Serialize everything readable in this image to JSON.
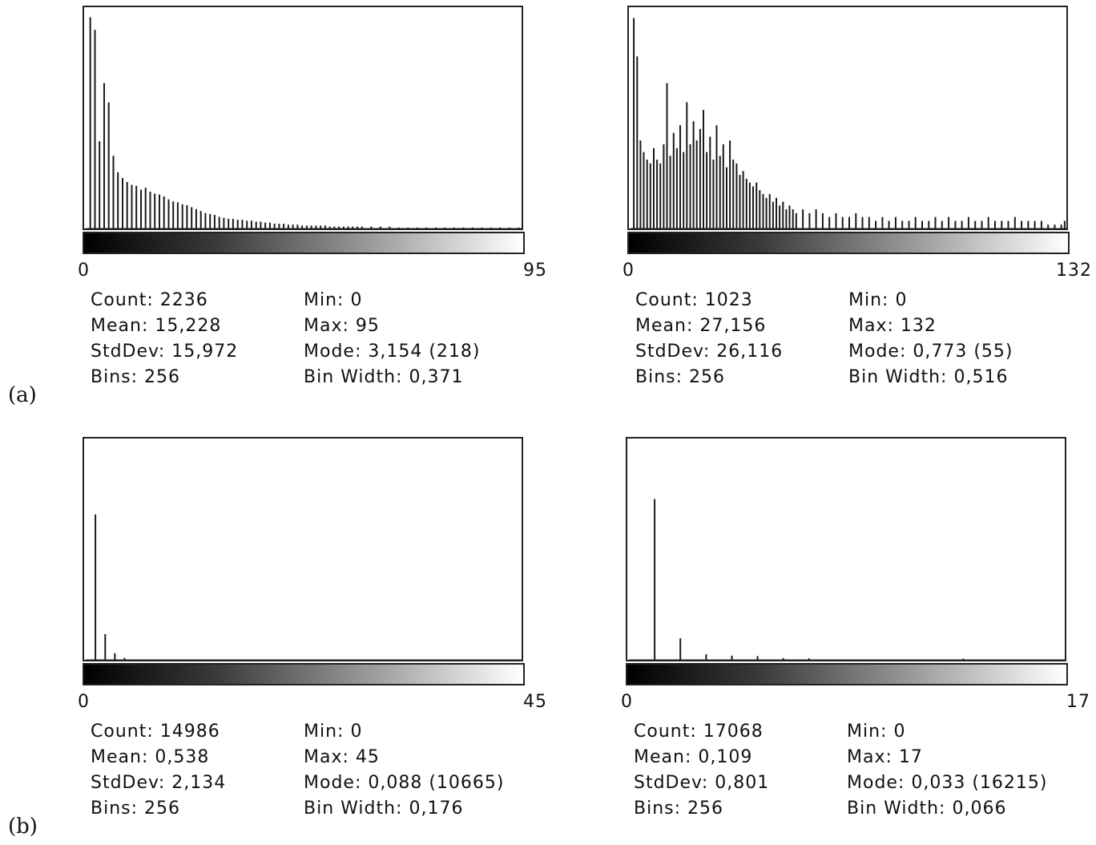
{
  "labels": {
    "a": "(a)",
    "b": "(b)"
  },
  "chart_data": [
    {
      "type": "bar",
      "xlim": [
        0,
        95
      ],
      "stats": {
        "count": "Count: 2236",
        "mean": "Mean: 15,228",
        "stddev": "StdDev: 15,972",
        "bins": "Bins: 256",
        "min": "Min: 0",
        "max": "Max: 95",
        "mode": "Mode: 3,154 (218)",
        "binwidth": "Bin Width: 0,371"
      },
      "x": [
        1,
        2,
        3,
        4,
        5,
        6,
        7,
        8,
        9,
        10,
        11,
        12,
        13,
        14,
        15,
        16,
        17,
        18,
        19,
        20,
        21,
        22,
        23,
        24,
        25,
        26,
        27,
        28,
        29,
        30,
        31,
        32,
        33,
        34,
        35,
        36,
        37,
        38,
        39,
        40,
        41,
        42,
        43,
        44,
        45,
        46,
        47,
        48,
        49,
        50,
        51,
        52,
        53,
        54,
        55,
        56,
        57,
        58,
        59,
        60,
        62,
        64,
        66,
        68,
        70,
        72,
        74,
        76,
        78,
        80,
        82,
        84,
        86,
        88,
        90,
        92,
        94
      ],
      "values": [
        218,
        205,
        90,
        150,
        130,
        75,
        58,
        52,
        48,
        45,
        44,
        40,
        42,
        38,
        36,
        35,
        33,
        30,
        28,
        27,
        25,
        24,
        22,
        20,
        18,
        16,
        15,
        14,
        12,
        11,
        10,
        10,
        9,
        9,
        8,
        8,
        7,
        7,
        6,
        6,
        5,
        5,
        5,
        4,
        4,
        4,
        3,
        3,
        3,
        3,
        3,
        3,
        2,
        2,
        2,
        2,
        2,
        2,
        2,
        2,
        2,
        2,
        2,
        1,
        1,
        1,
        1,
        1,
        1,
        1,
        1,
        1,
        1,
        1,
        1,
        1,
        1
      ],
      "ymax": 225
    },
    {
      "type": "bar",
      "xlim": [
        0,
        132
      ],
      "stats": {
        "count": "Count: 1023",
        "mean": "Mean: 27,156",
        "stddev": "StdDev: 26,116",
        "bins": "Bins: 256",
        "min": "Min: 0",
        "max": "Max: 132",
        "mode": "Mode: 0,773 (55)",
        "binwidth": "Bin Width: 0,516"
      },
      "x": [
        1,
        2,
        3,
        4,
        5,
        6,
        7,
        8,
        9,
        10,
        11,
        12,
        13,
        14,
        15,
        16,
        17,
        18,
        19,
        20,
        21,
        22,
        23,
        24,
        25,
        26,
        27,
        28,
        29,
        30,
        31,
        32,
        33,
        34,
        35,
        36,
        37,
        38,
        39,
        40,
        41,
        42,
        43,
        44,
        45,
        46,
        47,
        48,
        49,
        50,
        52,
        54,
        56,
        58,
        60,
        62,
        64,
        66,
        68,
        70,
        72,
        74,
        76,
        78,
        80,
        82,
        84,
        86,
        88,
        90,
        92,
        94,
        96,
        98,
        100,
        102,
        104,
        106,
        108,
        110,
        112,
        114,
        116,
        118,
        120,
        122,
        124,
        126,
        128,
        130,
        131
      ],
      "values": [
        55,
        45,
        23,
        20,
        18,
        17,
        21,
        18,
        17,
        22,
        38,
        19,
        25,
        21,
        27,
        20,
        33,
        22,
        28,
        23,
        26,
        31,
        20,
        24,
        18,
        27,
        19,
        22,
        16,
        23,
        18,
        17,
        14,
        15,
        13,
        12,
        11,
        12,
        10,
        9,
        8,
        9,
        7,
        8,
        6,
        7,
        5,
        6,
        5,
        4,
        5,
        4,
        5,
        4,
        3,
        4,
        3,
        3,
        4,
        3,
        3,
        2,
        3,
        2,
        3,
        2,
        2,
        3,
        2,
        2,
        3,
        2,
        3,
        2,
        2,
        3,
        2,
        2,
        3,
        2,
        2,
        2,
        3,
        2,
        2,
        2,
        2,
        1,
        1,
        1,
        2
      ],
      "ymax": 57
    },
    {
      "type": "bar",
      "xlim": [
        0,
        45
      ],
      "stats": {
        "count": "Count: 14986",
        "mean": "Mean: 0,538",
        "stddev": "StdDev: 2,134",
        "bins": "Bins: 256",
        "min": "Min: 0",
        "max": "Max: 45",
        "mode": "Mode: 0,088 (10665)",
        "binwidth": "Bin Width: 0,176"
      },
      "x": [
        1,
        2,
        3,
        4
      ],
      "values": [
        10665,
        1880,
        480,
        140
      ],
      "ymax": 16000
    },
    {
      "type": "bar",
      "xlim": [
        0,
        17
      ],
      "stats": {
        "count": "Count: 17068",
        "mean": "Mean: 0,109",
        "stddev": "StdDev: 0,801",
        "bins": "Bins: 256",
        "min": "Min: 0",
        "max": "Max: 17",
        "mode": "Mode: 0,033 (16215)",
        "binwidth": "Bin Width: 0,066"
      },
      "x": [
        1,
        2,
        3,
        4,
        5,
        6,
        7,
        13
      ],
      "values": [
        16215,
        2170,
        560,
        420,
        380,
        170,
        150,
        120
      ],
      "ymax": 22000
    }
  ]
}
